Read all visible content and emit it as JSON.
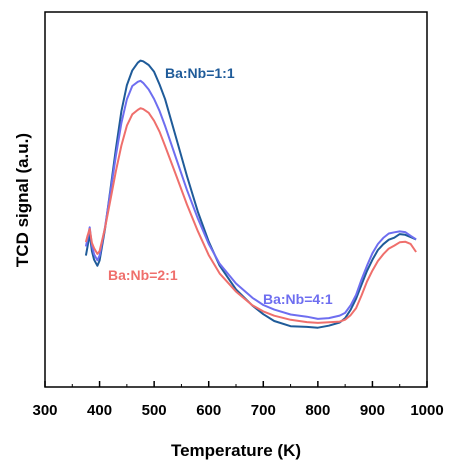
{
  "chart_data": {
    "type": "line",
    "xlabel": "Temperature (K)",
    "ylabel": "TCD signal (a.u.)",
    "xlim": [
      300,
      1000
    ],
    "ylim": [
      0,
      1
    ],
    "xticks": [
      300,
      400,
      500,
      600,
      700,
      800,
      900,
      1000
    ],
    "y_ticks_shown": false,
    "grid": false,
    "legend": "inline labels next to curves",
    "series": [
      {
        "name": "Ba:Nb=1:1",
        "color": "#1f5b99",
        "x": [
          375,
          378,
          382,
          386,
          390,
          396,
          400,
          410,
          420,
          430,
          440,
          450,
          460,
          470,
          475,
          480,
          490,
          500,
          510,
          520,
          540,
          560,
          580,
          600,
          620,
          650,
          680,
          700,
          720,
          750,
          780,
          800,
          820,
          840,
          850,
          860,
          870,
          880,
          890,
          900,
          910,
          920,
          930,
          940,
          950,
          960,
          970,
          980
        ],
        "y": [
          0.33,
          0.36,
          0.4,
          0.34,
          0.31,
          0.29,
          0.31,
          0.42,
          0.56,
          0.7,
          0.83,
          0.92,
          0.97,
          0.995,
          1.0,
          0.995,
          0.98,
          0.955,
          0.91,
          0.86,
          0.73,
          0.6,
          0.48,
          0.38,
          0.3,
          0.22,
          0.165,
          0.135,
          0.11,
          0.09,
          0.085,
          0.08,
          0.085,
          0.095,
          0.11,
          0.14,
          0.18,
          0.23,
          0.28,
          0.32,
          0.355,
          0.375,
          0.39,
          0.395,
          0.405,
          0.4,
          0.39,
          0.38
        ]
      },
      {
        "name": "Ba:Nb=4:1",
        "color": "#6e6ef0",
        "x": [
          375,
          378,
          382,
          386,
          390,
          396,
          400,
          410,
          420,
          430,
          440,
          450,
          460,
          470,
          475,
          480,
          490,
          500,
          510,
          520,
          540,
          560,
          580,
          600,
          620,
          650,
          680,
          700,
          720,
          750,
          780,
          800,
          820,
          840,
          850,
          860,
          870,
          880,
          890,
          900,
          910,
          920,
          930,
          940,
          950,
          960,
          970,
          980
        ],
        "y": [
          0.36,
          0.39,
          0.43,
          0.37,
          0.34,
          0.32,
          0.335,
          0.43,
          0.55,
          0.67,
          0.78,
          0.86,
          0.905,
          0.92,
          0.925,
          0.92,
          0.9,
          0.87,
          0.83,
          0.78,
          0.67,
          0.56,
          0.46,
          0.37,
          0.3,
          0.23,
          0.18,
          0.155,
          0.14,
          0.125,
          0.12,
          0.115,
          0.12,
          0.13,
          0.14,
          0.165,
          0.2,
          0.25,
          0.295,
          0.335,
          0.365,
          0.385,
          0.4,
          0.405,
          0.41,
          0.41,
          0.4,
          0.39
        ]
      },
      {
        "name": "Ba:Nb=2:1",
        "color": "#ef6f6c",
        "x": [
          375,
          378,
          382,
          386,
          390,
          396,
          400,
          410,
          420,
          430,
          440,
          450,
          460,
          470,
          475,
          480,
          490,
          500,
          510,
          520,
          540,
          560,
          580,
          600,
          620,
          650,
          680,
          700,
          720,
          750,
          780,
          800,
          820,
          840,
          850,
          860,
          870,
          880,
          890,
          900,
          910,
          920,
          930,
          940,
          950,
          960,
          970,
          980
        ],
        "y": [
          0.38,
          0.4,
          0.42,
          0.37,
          0.35,
          0.33,
          0.34,
          0.42,
          0.52,
          0.62,
          0.71,
          0.78,
          0.82,
          0.835,
          0.84,
          0.835,
          0.82,
          0.79,
          0.75,
          0.7,
          0.6,
          0.5,
          0.41,
          0.33,
          0.27,
          0.21,
          0.165,
          0.145,
          0.13,
          0.115,
          0.105,
          0.1,
          0.1,
          0.1,
          0.105,
          0.12,
          0.145,
          0.19,
          0.24,
          0.28,
          0.315,
          0.34,
          0.36,
          0.37,
          0.38,
          0.38,
          0.37,
          0.34
        ]
      }
    ]
  }
}
